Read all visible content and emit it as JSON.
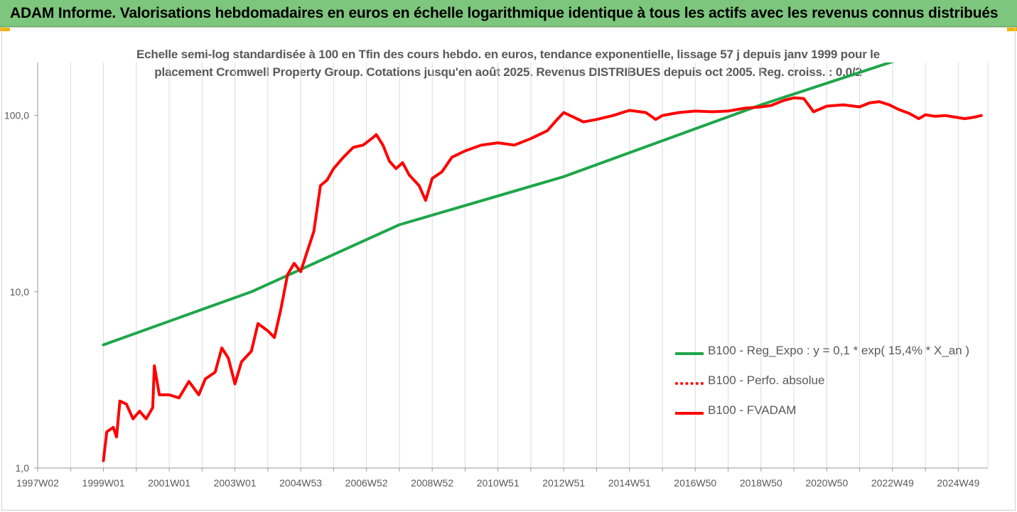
{
  "banner": {
    "title": "ADAM Informe. Valorisations hebdomadaires en euros en échelle logarithmique identique à tous les actifs avec les revenus connus distribués"
  },
  "chart_data": {
    "type": "line",
    "title": "Echelle semi-log standardisée à 100 en Tfin des cours hebdo. en euros, tendance exponentielle, lissage 57 j depuis janv 1999 pour le placement Cromwell Property Group. Cotations jusqu'en août 2025. Revenus DISTRIBUES depuis oct 2005. Reg. croiss. : 0,0/2",
    "title_lines": [
      "Echelle semi-log standardisée à 100 en Tfin des cours hebdo. en euros, tendance exponentielle, lissage 57 j depuis janv 1999 pour le",
      "placement Cromwell Property Group. Cotations jusqu'en août 2025. Revenus DISTRIBUES depuis oct 2005. Reg. croiss. : 0,0/2"
    ],
    "xlabel": "",
    "ylabel": "",
    "y_scale": "log",
    "ylim": [
      1,
      200
    ],
    "x_range": [
      1997.0,
      2025.9
    ],
    "grid": {
      "vertical": true,
      "horizontal": false
    },
    "legend_position": "right",
    "y_ticks": [
      {
        "value": 1,
        "label": "1,0"
      },
      {
        "value": 10,
        "label": "10,0"
      },
      {
        "value": 100,
        "label": "100,0"
      }
    ],
    "x_ticks": [
      {
        "x": 1997.0,
        "label": "1997W02"
      },
      {
        "x": 1998.0,
        "label": ""
      },
      {
        "x": 1999.0,
        "label": "1999W01"
      },
      {
        "x": 2000.0,
        "label": ""
      },
      {
        "x": 2001.0,
        "label": "2001W01"
      },
      {
        "x": 2002.0,
        "label": ""
      },
      {
        "x": 2003.0,
        "label": "2003W01"
      },
      {
        "x": 2004.0,
        "label": ""
      },
      {
        "x": 2005.0,
        "label": "2004W53"
      },
      {
        "x": 2006.0,
        "label": ""
      },
      {
        "x": 2007.0,
        "label": "2006W52"
      },
      {
        "x": 2008.0,
        "label": ""
      },
      {
        "x": 2009.0,
        "label": "2008W52"
      },
      {
        "x": 2010.0,
        "label": ""
      },
      {
        "x": 2011.0,
        "label": "2010W51"
      },
      {
        "x": 2012.0,
        "label": ""
      },
      {
        "x": 2013.0,
        "label": "2012W51"
      },
      {
        "x": 2014.0,
        "label": ""
      },
      {
        "x": 2015.0,
        "label": "2014W51"
      },
      {
        "x": 2016.0,
        "label": ""
      },
      {
        "x": 2017.0,
        "label": "2016W50"
      },
      {
        "x": 2018.0,
        "label": ""
      },
      {
        "x": 2019.0,
        "label": "2018W50"
      },
      {
        "x": 2020.0,
        "label": ""
      },
      {
        "x": 2021.0,
        "label": "2020W50"
      },
      {
        "x": 2022.0,
        "label": ""
      },
      {
        "x": 2023.0,
        "label": "2022W49"
      },
      {
        "x": 2024.0,
        "label": ""
      },
      {
        "x": 2025.0,
        "label": "2024W49"
      }
    ],
    "series": [
      {
        "name": "B100 - Reg_Expo : y = 0,1 * exp( 15,4% *  X_an )",
        "color": "#1ea64a",
        "style": "solid",
        "points": [
          [
            1999.0,
            5.0
          ],
          [
            2003.5,
            10.0
          ],
          [
            2008.0,
            24.0
          ],
          [
            2013.0,
            45.0
          ],
          [
            2019.0,
            115.0
          ],
          [
            2023.1,
            205.0
          ]
        ]
      },
      {
        "name": "B100 - Perfo. absolue",
        "color": "#ff0000",
        "style": "dotted",
        "points": []
      },
      {
        "name": "B100 - FVADAM",
        "color": "#ff0000",
        "style": "solid",
        "points": [
          [
            1999.0,
            1.1
          ],
          [
            1999.1,
            1.6
          ],
          [
            1999.3,
            1.7
          ],
          [
            1999.4,
            1.5
          ],
          [
            1999.5,
            2.4
          ],
          [
            1999.7,
            2.3
          ],
          [
            1999.9,
            1.9
          ],
          [
            2000.1,
            2.1
          ],
          [
            2000.3,
            1.9
          ],
          [
            2000.5,
            2.2
          ],
          [
            2000.55,
            3.8
          ],
          [
            2000.7,
            2.6
          ],
          [
            2001.0,
            2.6
          ],
          [
            2001.3,
            2.5
          ],
          [
            2001.6,
            3.1
          ],
          [
            2001.9,
            2.6
          ],
          [
            2002.1,
            3.2
          ],
          [
            2002.4,
            3.5
          ],
          [
            2002.6,
            4.8
          ],
          [
            2002.8,
            4.2
          ],
          [
            2003.0,
            3.0
          ],
          [
            2003.2,
            4.0
          ],
          [
            2003.5,
            4.6
          ],
          [
            2003.7,
            6.6
          ],
          [
            2004.0,
            6.0
          ],
          [
            2004.2,
            5.5
          ],
          [
            2004.4,
            8.0
          ],
          [
            2004.6,
            12.5
          ],
          [
            2004.8,
            14.5
          ],
          [
            2005.0,
            13.0
          ],
          [
            2005.2,
            17.0
          ],
          [
            2005.4,
            22.0
          ],
          [
            2005.6,
            40.0
          ],
          [
            2005.8,
            43.0
          ],
          [
            2006.0,
            50.0
          ],
          [
            2006.3,
            58.0
          ],
          [
            2006.6,
            66.0
          ],
          [
            2006.9,
            68.0
          ],
          [
            2007.2,
            75.0
          ],
          [
            2007.3,
            78.0
          ],
          [
            2007.5,
            68.0
          ],
          [
            2007.7,
            55.0
          ],
          [
            2007.9,
            50.0
          ],
          [
            2008.1,
            54.0
          ],
          [
            2008.3,
            46.0
          ],
          [
            2008.6,
            40.0
          ],
          [
            2008.8,
            33.0
          ],
          [
            2009.0,
            44.0
          ],
          [
            2009.3,
            48.0
          ],
          [
            2009.6,
            58.0
          ],
          [
            2010.0,
            63.0
          ],
          [
            2010.5,
            68.0
          ],
          [
            2011.0,
            70.0
          ],
          [
            2011.5,
            68.0
          ],
          [
            2012.0,
            74.0
          ],
          [
            2012.5,
            82.0
          ],
          [
            2012.8,
            95.0
          ],
          [
            2013.0,
            104.0
          ],
          [
            2013.3,
            98.0
          ],
          [
            2013.6,
            92.0
          ],
          [
            2014.0,
            95.0
          ],
          [
            2014.5,
            100.0
          ],
          [
            2015.0,
            107.0
          ],
          [
            2015.5,
            104.0
          ],
          [
            2015.8,
            95.0
          ],
          [
            2016.0,
            100.0
          ],
          [
            2016.5,
            104.0
          ],
          [
            2017.0,
            106.0
          ],
          [
            2017.5,
            105.0
          ],
          [
            2018.0,
            106.0
          ],
          [
            2018.5,
            110.0
          ],
          [
            2019.0,
            112.0
          ],
          [
            2019.3,
            114.0
          ],
          [
            2019.7,
            122.0
          ],
          [
            2020.0,
            126.0
          ],
          [
            2020.3,
            125.0
          ],
          [
            2020.6,
            105.0
          ],
          [
            2021.0,
            113.0
          ],
          [
            2021.5,
            115.0
          ],
          [
            2022.0,
            112.0
          ],
          [
            2022.3,
            118.0
          ],
          [
            2022.6,
            120.0
          ],
          [
            2022.9,
            115.0
          ],
          [
            2023.2,
            108.0
          ],
          [
            2023.5,
            103.0
          ],
          [
            2023.8,
            96.0
          ],
          [
            2024.0,
            101.0
          ],
          [
            2024.3,
            99.0
          ],
          [
            2024.6,
            100.0
          ],
          [
            2024.9,
            98.0
          ],
          [
            2025.2,
            96.0
          ],
          [
            2025.5,
            98.0
          ],
          [
            2025.7,
            100.0
          ]
        ]
      }
    ]
  }
}
